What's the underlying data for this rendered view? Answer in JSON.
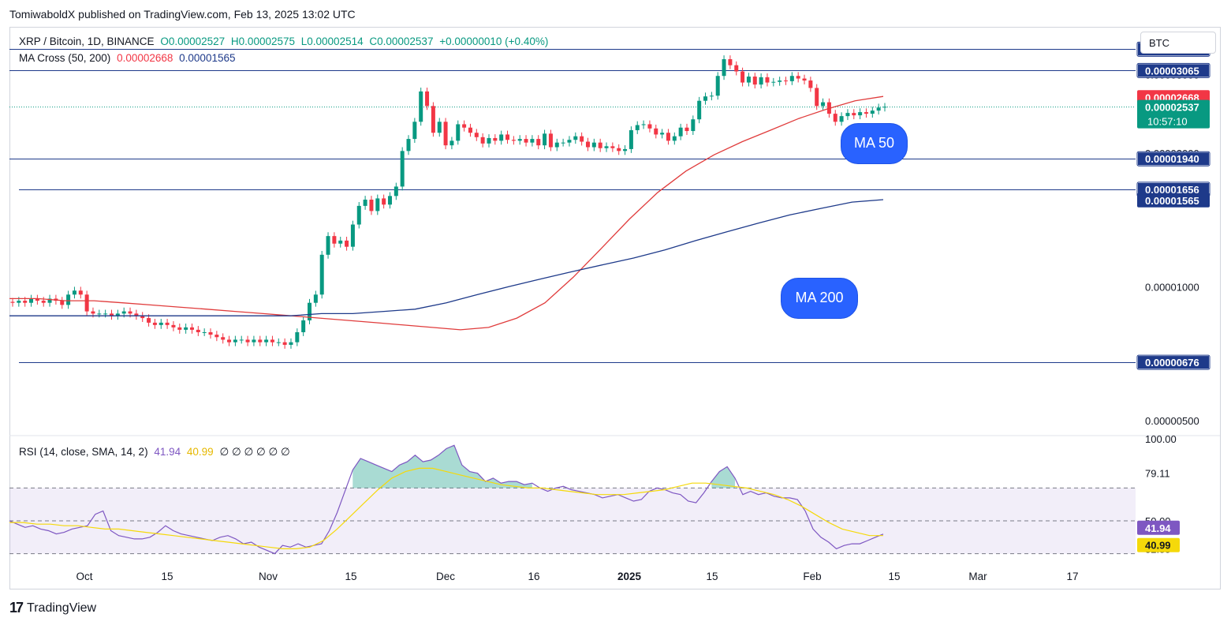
{
  "header": {
    "published": "TomiwaboldX published on TradingView.com, Feb 13, 2025 13:02 UTC"
  },
  "legend": {
    "symbol": "XRP / Bitcoin, 1D, BINANCE",
    "open": "O0.00002527",
    "high": "H0.00002575",
    "low": "L0.00002514",
    "close": "C0.00002537",
    "change": "+0.00000010 (+0.40%)",
    "ma_label": "MA Cross (50, 200)",
    "ma50_value": "0.00002668",
    "ma200_value": "0.00001565",
    "rsi_label": "RSI (14, close, SMA, 14, 2)",
    "rsi_value": "41.94",
    "rsi_sma_value": "40.99",
    "rsi_empty": "∅ ∅ ∅ ∅ ∅ ∅"
  },
  "currency_button": "BTC",
  "annotations": {
    "ma50": "MA 50",
    "ma200": "MA 200"
  },
  "footer": {
    "brand": "TradingView",
    "logo_mark": "17"
  },
  "colors": {
    "up": "#089981",
    "down": "#f23645",
    "ma50": "#e03c3c",
    "ma200": "#1e3a8a",
    "hline": "#1e3a8a",
    "rsi": "#7e57c2",
    "rsi_sma": "#f5d90a",
    "accent": "#2962ff"
  },
  "chart_data": [
    {
      "type": "candlestick",
      "title": "",
      "xlabel": "",
      "ylabel": "",
      "log_scale": true,
      "ylim": [
        4.7e-06,
        3.75e-05
      ],
      "x_tick_labels": [
        "Oct",
        "15",
        "Nov",
        "15",
        "Dec",
        "16",
        "2025",
        "15",
        "Feb",
        "15",
        "Mar",
        "17"
      ],
      "y_tick_labels": [
        "0.00003000",
        "0.00002000",
        "0.00001000",
        "0.00000500"
      ],
      "y_ticks": [
        3e-05,
        2e-05,
        1e-05,
        5e-06
      ],
      "horizontal_levels": [
        {
          "label": "0.00003423",
          "value": 3.423e-05
        },
        {
          "label": "0.00003065",
          "value": 3.065e-05
        },
        {
          "label": "0.00001940",
          "value": 1.94e-05
        },
        {
          "label": "0.00001656",
          "value": 1.656e-05
        },
        {
          "label": "0.00000676",
          "value": 6.76e-06
        }
      ],
      "price_tags": [
        {
          "label": "0.00002668",
          "value": 2.668e-05,
          "series": "MA 50"
        },
        {
          "label": "0.00002537",
          "value": 2.537e-05,
          "series": "XRP / Bitcoin",
          "countdown": "10:57:10"
        },
        {
          "label": "0.00001565",
          "value": 1.565e-05,
          "series": "MA 200"
        }
      ],
      "ohlc_closes": [
        9.2e-06,
        9.3e-06,
        9.2e-06,
        9.4e-06,
        9.3e-06,
        9.2e-06,
        9.4e-06,
        9.3e-06,
        9.1e-06,
        9.6e-06,
        9.8e-06,
        9.6e-06,
        8.8e-06,
        8.7e-06,
        8.7e-06,
        8.7e-06,
        8.6e-06,
        8.7e-06,
        8.8e-06,
        8.7e-06,
        8.6e-06,
        8.5e-06,
        8.3e-06,
        8.2e-06,
        8.3e-06,
        8.2e-06,
        8.1e-06,
        8e-06,
        8.1e-06,
        8e-06,
        7.9e-06,
        7.9e-06,
        7.8e-06,
        7.7e-06,
        7.6e-06,
        7.5e-06,
        7.6e-06,
        7.6e-06,
        7.5e-06,
        7.6e-06,
        7.5e-06,
        7.6e-06,
        7.5e-06,
        7.5e-06,
        7.4e-06,
        7.5e-06,
        7.9e-06,
        8.4e-06,
        9.2e-06,
        9.6e-06,
        1.18e-05,
        1.3e-05,
        1.25e-05,
        1.27e-05,
        1.23e-05,
        1.38e-05,
        1.52e-05,
        1.57e-05,
        1.48e-05,
        1.58e-05,
        1.53e-05,
        1.6e-05,
        1.68e-05,
        2.02e-05,
        2.15e-05,
        2.35e-05,
        2.75e-05,
        2.55e-05,
        2.22e-05,
        2.35e-05,
        2.08e-05,
        2.13e-05,
        2.32e-05,
        2.28e-05,
        2.22e-05,
        2.17e-05,
        2.1e-05,
        2.16e-05,
        2.13e-05,
        2.2e-05,
        2.14e-05,
        2.13e-05,
        2.15e-05,
        2.11e-05,
        2.15e-05,
        2.08e-05,
        2.21e-05,
        2.06e-05,
        2.11e-05,
        2.11e-05,
        2.14e-05,
        2.18e-05,
        2.12e-05,
        2.06e-05,
        2.11e-05,
        2.05e-05,
        2.07e-05,
        2.05e-05,
        2.02e-05,
        2.04e-05,
        2.25e-05,
        2.31e-05,
        2.32e-05,
        2.27e-05,
        2.2e-05,
        2.22e-05,
        2.13e-05,
        2.18e-05,
        2.28e-05,
        2.24e-05,
        2.38e-05,
        2.62e-05,
        2.68e-05,
        2.69e-05,
        2.98e-05,
        3.25e-05,
        3.15e-05,
        3.05e-05,
        2.88e-05,
        2.97e-05,
        2.85e-05,
        2.96e-05,
        2.88e-05,
        2.89e-05,
        2.91e-05,
        2.9e-05,
        2.98e-05,
        2.94e-05,
        2.91e-05,
        2.8e-05,
        2.55e-05,
        2.6e-05,
        2.45e-05,
        2.35e-05,
        2.42e-05,
        2.46e-05,
        2.43e-05,
        2.47e-05,
        2.45e-05,
        2.49e-05,
        2.53e-05,
        2.54e-05
      ],
      "series": [
        {
          "name": "MA 50",
          "values": [
            9.4e-06,
            9.4e-06,
            9.3e-06,
            9.3e-06,
            9.2e-06,
            9.1e-06,
            9e-06,
            8.9e-06,
            8.8e-06,
            8.7e-06,
            8.6e-06,
            8.5e-06,
            8.4e-06,
            8.3e-06,
            8.2e-06,
            8.1e-06,
            8e-06,
            8.1e-06,
            8.5e-06,
            9.2e-06,
            1.05e-05,
            1.22e-05,
            1.42e-05,
            1.63e-05,
            1.82e-05,
            1.98e-05,
            2.12e-05,
            2.25e-05,
            2.39e-05,
            2.51e-05,
            2.62e-05,
            2.68e-05
          ]
        },
        {
          "name": "MA 200",
          "values": [
            8.6e-06,
            8.6e-06,
            8.6e-06,
            8.6e-06,
            8.6e-06,
            8.6e-06,
            8.6e-06,
            8.6e-06,
            8.6e-06,
            8.6e-06,
            8.7e-06,
            8.7e-06,
            8.8e-06,
            8.9e-06,
            9.2e-06,
            9.6e-06,
            1e-05,
            1.04e-05,
            1.08e-05,
            1.12e-05,
            1.16e-05,
            1.21e-05,
            1.27e-05,
            1.33e-05,
            1.39e-05,
            1.45e-05,
            1.5e-05,
            1.55e-05,
            1.57e-05
          ]
        }
      ]
    },
    {
      "type": "line",
      "title": "",
      "xlabel": "",
      "ylabel": "",
      "ylim": [
        25,
        100
      ],
      "y_tick_labels": [
        "100.00",
        "79.11",
        "50.00",
        "32.85"
      ],
      "y_ticks": [
        100,
        79.11,
        50,
        32.85
      ],
      "bands": [
        70,
        50,
        30
      ],
      "series": [
        {
          "name": "RSI",
          "values": [
            50,
            48,
            46,
            47,
            45,
            44,
            42,
            43,
            45,
            46,
            47,
            54,
            56,
            44,
            41,
            40,
            39,
            39,
            40,
            43,
            47,
            44,
            42,
            41,
            40,
            39,
            38,
            40,
            41,
            39,
            36,
            37,
            34,
            32,
            30,
            35,
            34,
            36,
            34,
            35,
            36,
            44,
            55,
            68,
            81,
            88,
            86,
            84,
            82,
            80,
            84,
            86,
            90,
            86,
            87,
            90,
            94,
            96,
            84,
            80,
            79,
            74,
            76,
            73,
            74,
            74,
            72,
            73,
            70,
            68,
            70,
            71,
            69,
            68,
            67,
            66,
            64,
            65,
            66,
            64,
            62,
            63,
            68,
            70,
            69,
            67,
            66,
            62,
            61,
            67,
            74,
            80,
            83,
            76,
            66,
            68,
            66,
            67,
            65,
            64,
            64,
            63,
            56,
            45,
            40,
            37,
            33,
            35,
            36,
            36,
            38,
            40,
            41.94
          ]
        },
        {
          "name": "SMA",
          "values": [
            49,
            49,
            48,
            48,
            47,
            47,
            46,
            45,
            45,
            44,
            43,
            42,
            41,
            40,
            39,
            38,
            37,
            36,
            35,
            34,
            33,
            33,
            34,
            38,
            45,
            53,
            61,
            69,
            76,
            80,
            82,
            82,
            80,
            78,
            76,
            74,
            72,
            71,
            70,
            70,
            69,
            68,
            67,
            66,
            66,
            66,
            67,
            68,
            69,
            71,
            73,
            73,
            72,
            71,
            70,
            68,
            66,
            63,
            59,
            54,
            49,
            45,
            43,
            41,
            40.99
          ]
        }
      ],
      "values_tags": [
        {
          "label": "41.94",
          "value": 41.94,
          "series": "RSI"
        },
        {
          "label": "40.99",
          "value": 40.99,
          "series": "SMA"
        }
      ]
    }
  ]
}
